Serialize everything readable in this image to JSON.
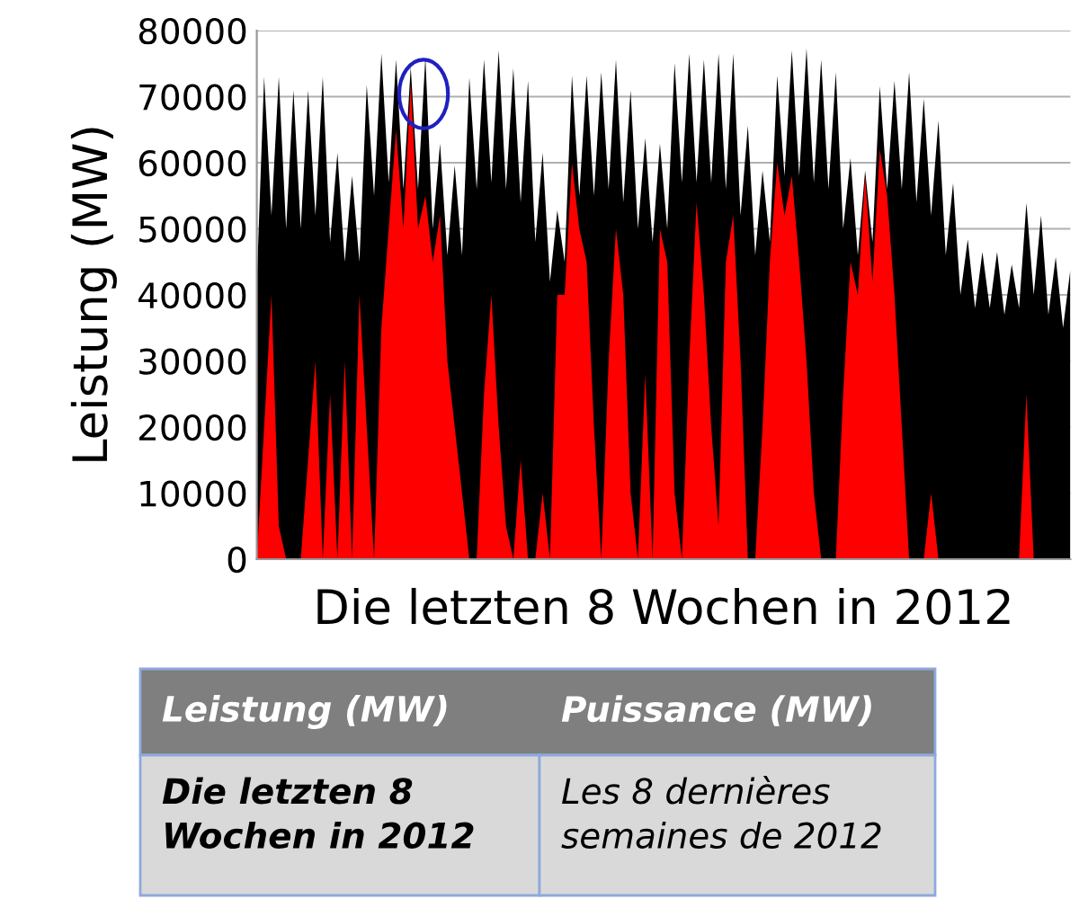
{
  "chart_data": {
    "type": "area",
    "xlabel": "Die letzten 8 Wochen in 2012",
    "ylabel": "Leistung (MW)",
    "categories": [
      null,
      null,
      null,
      null,
      null,
      null,
      null,
      null,
      null,
      null,
      null,
      null,
      null,
      null,
      null,
      null,
      null,
      null,
      null,
      null,
      null,
      null,
      null,
      null,
      null,
      null,
      null,
      null,
      null,
      null,
      null,
      null,
      null,
      null,
      null,
      null,
      null,
      null,
      null,
      null,
      null,
      null,
      null,
      null,
      null,
      null,
      null,
      null,
      null,
      null,
      null,
      null,
      null,
      null,
      null,
      null,
      null,
      null,
      null,
      null,
      null,
      null,
      null,
      null,
      null,
      null,
      null,
      null,
      null,
      null,
      null,
      null,
      null,
      null,
      null,
      null,
      null,
      null,
      null,
      null,
      null,
      null,
      null,
      null,
      null,
      null,
      null,
      null,
      null,
      null,
      null,
      null,
      null,
      null,
      null,
      null,
      null,
      null,
      null,
      null,
      null,
      null,
      null,
      null,
      null,
      null,
      null,
      null,
      null,
      null,
      null,
      null
    ],
    "series": [
      {
        "color": "#000000",
        "values": [
          42000,
          73000,
          52000,
          73000,
          50000,
          71000,
          50000,
          71000,
          52000,
          73000,
          48000,
          61500,
          45000,
          58000,
          45000,
          71800,
          55000,
          76500,
          57000,
          75600,
          56000,
          74500,
          56000,
          76000,
          50000,
          62900,
          46000,
          59600,
          46000,
          72900,
          56000,
          75600,
          57000,
          77000,
          56000,
          74300,
          54000,
          72400,
          48000,
          61500,
          42000,
          52800,
          45000,
          73200,
          55000,
          73200,
          55000,
          73700,
          56000,
          75600,
          54000,
          71000,
          50000,
          63700,
          48000,
          62900,
          50000,
          75100,
          57000,
          76500,
          57000,
          75600,
          57000,
          76500,
          56000,
          76500,
          52000,
          65600,
          46000,
          58800,
          48000,
          73200,
          58000,
          77000,
          58000,
          77300,
          57000,
          75600,
          56000,
          73700,
          50000,
          60700,
          46000,
          58800,
          48000,
          71600,
          56000,
          72400,
          56000,
          73700,
          54000,
          69700,
          52000,
          66400,
          46000,
          56900,
          40000,
          48400,
          38000,
          46500,
          38000,
          46500,
          37000,
          44600,
          38000,
          53900,
          40000,
          52000,
          37000,
          45700,
          35000,
          43800
        ]
      },
      {
        "color": "#ff0000",
        "values": [
          0,
          20000,
          40000,
          5000,
          0,
          0,
          0,
          15000,
          30000,
          0,
          25000,
          0,
          30000,
          0,
          40000,
          20000,
          0,
          35000,
          50000,
          65000,
          50000,
          72000,
          50000,
          55000,
          45000,
          52000,
          30000,
          20000,
          10000,
          0,
          0,
          25000,
          40000,
          20000,
          5000,
          0,
          15000,
          0,
          0,
          10000,
          0,
          40000,
          40000,
          60000,
          50000,
          45000,
          20000,
          0,
          30000,
          50000,
          40000,
          10000,
          0,
          28000,
          0,
          50000,
          45000,
          10000,
          0,
          30000,
          54000,
          40000,
          20000,
          5000,
          45000,
          52000,
          30000,
          0,
          0,
          20000,
          45000,
          60000,
          52000,
          58000,
          45000,
          30000,
          10000,
          0,
          0,
          0,
          25000,
          45000,
          40000,
          58000,
          42000,
          62000,
          55000,
          40000,
          20000,
          0,
          0,
          0,
          10000,
          0,
          0,
          0,
          0,
          0,
          0,
          0,
          0,
          0,
          0,
          0,
          0,
          25000,
          0,
          0,
          0,
          0,
          0,
          0
        ]
      }
    ],
    "ylim": [
      0,
      80000
    ],
    "yticks": [
      0,
      10000,
      20000,
      30000,
      40000,
      50000,
      60000,
      70000,
      80000
    ],
    "grid": "y",
    "legend": false,
    "annotations": [
      "Leistung (MW)",
      "Puissance (MW)",
      "Die letzten 8\nWochen in 2012",
      "Les 8 dernières\nsemaines de 2012"
    ]
  }
}
